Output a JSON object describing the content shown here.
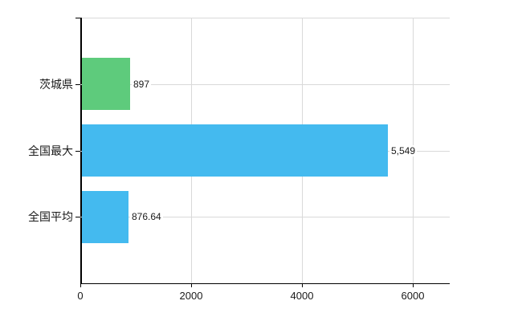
{
  "chart_data": {
    "type": "bar",
    "orientation": "horizontal",
    "title": "",
    "xlabel": "",
    "ylabel": "",
    "categories": [
      "茨城県",
      "全国最大",
      "全国平均"
    ],
    "values": [
      897,
      5549,
      876.64
    ],
    "value_labels": [
      "897",
      "5,549",
      "876.64"
    ],
    "bar_colors": [
      "#5ecb7c",
      "#44baef",
      "#44baef"
    ],
    "xlim": [
      0,
      6667
    ],
    "x_ticks": [
      0,
      2000,
      4000,
      6000
    ],
    "x_tick_labels": [
      "0",
      "2000",
      "4000",
      "6000"
    ],
    "grid": true,
    "legend": "none",
    "axis_color": "#000000",
    "gridline_color": "#d9d9d9",
    "text_color": "#1a1a1a",
    "background_color": "#ffffff"
  }
}
